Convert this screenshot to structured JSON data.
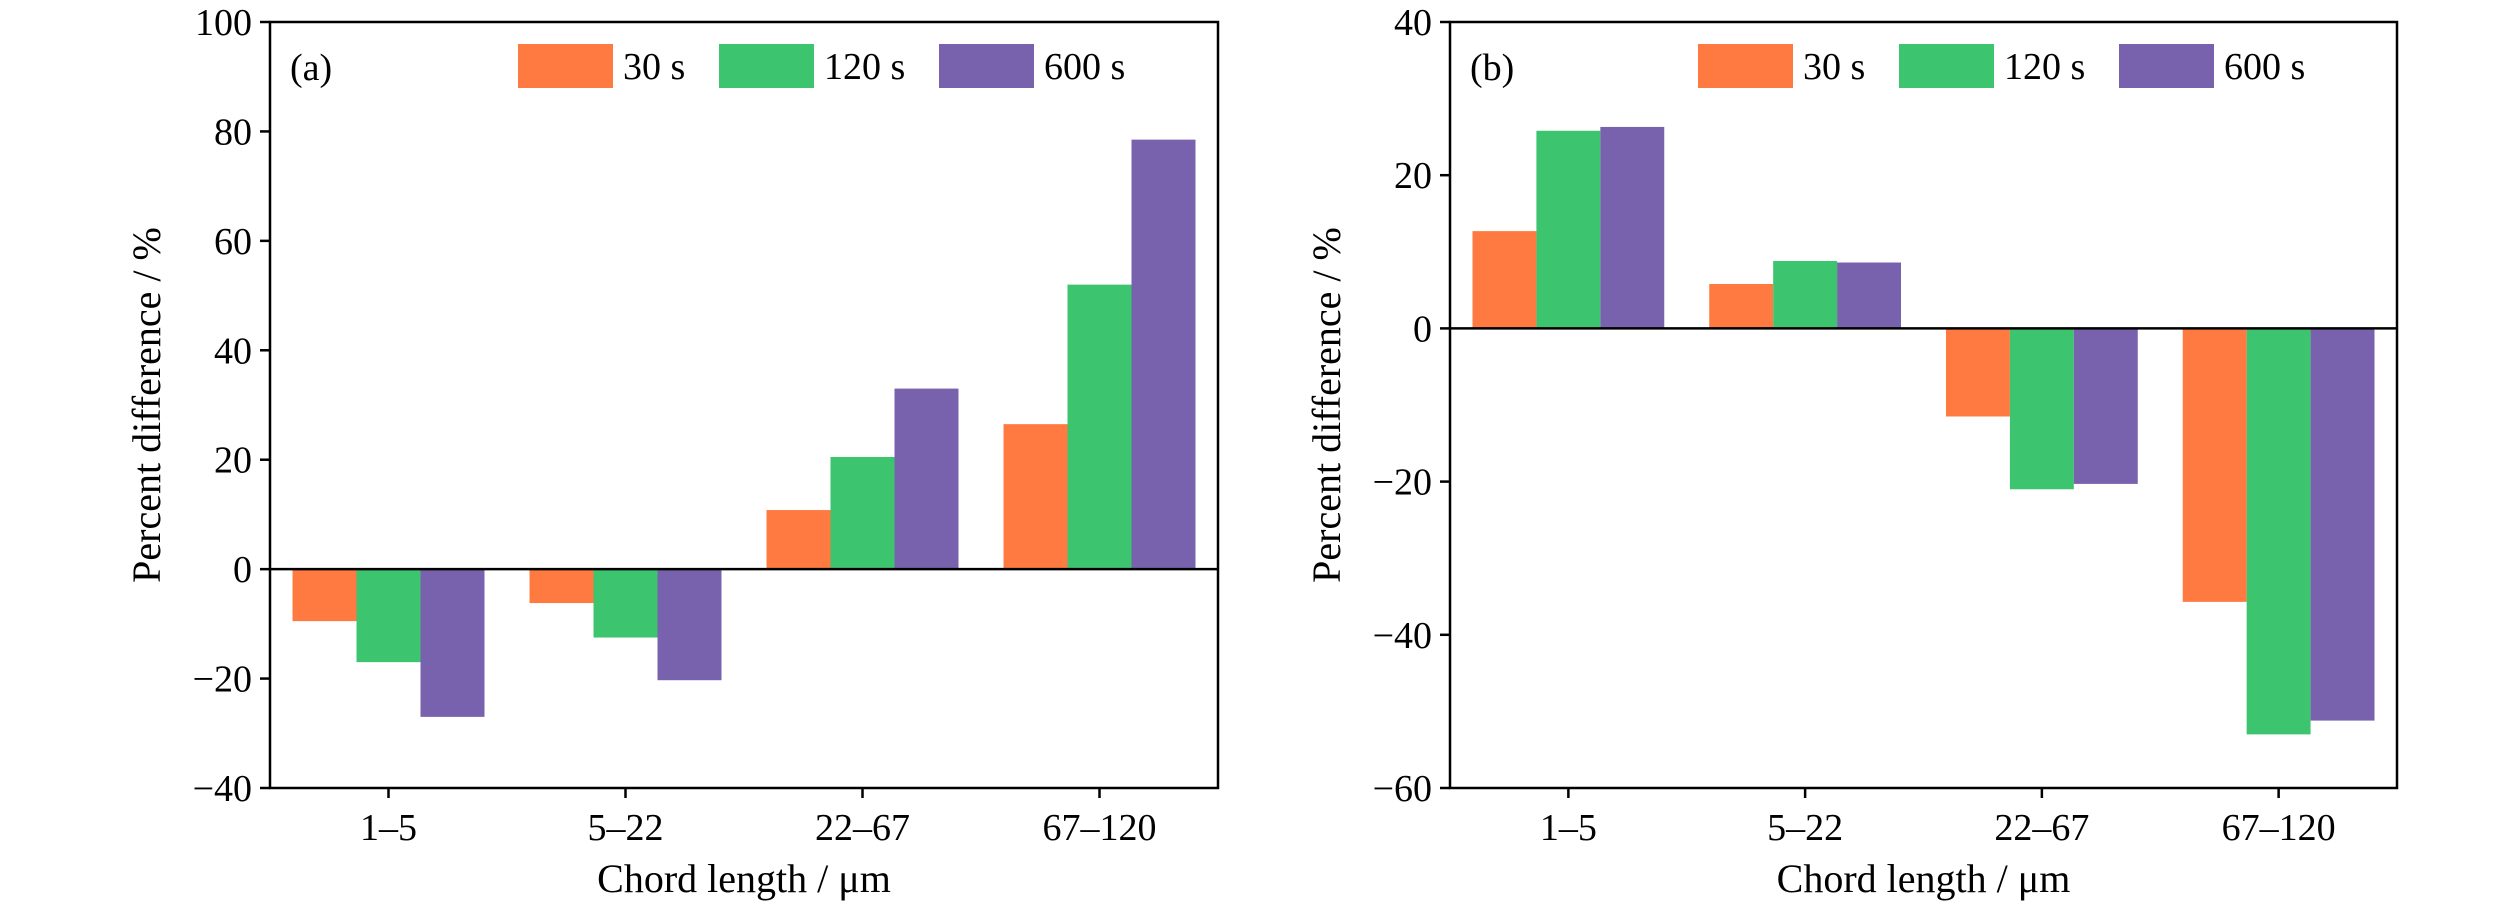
{
  "chart_data": [
    {
      "type": "bar",
      "panel_label": "(a)",
      "categories": [
        "1–5",
        "5–22",
        "22–67",
        "67–120"
      ],
      "series": [
        {
          "name": "30 s",
          "color": "#FF7A40",
          "values": [
            -9.5,
            -6.2,
            10.8,
            26.5
          ]
        },
        {
          "name": "120 s",
          "color": "#3DC46E",
          "values": [
            -17.0,
            -12.5,
            20.5,
            52.0
          ]
        },
        {
          "name": "600 s",
          "color": "#7862AD",
          "values": [
            -27.0,
            -20.3,
            33.0,
            78.5
          ]
        }
      ],
      "xlabel": "Chord length / μm",
      "ylabel": "Percent difference / %",
      "ylim": [
        -40,
        100
      ],
      "yticks": [
        -40,
        -20,
        0,
        20,
        40,
        60,
        80,
        100
      ],
      "ytick_labels": [
        "−40",
        "−20",
        "0",
        "20",
        "40",
        "60",
        "80",
        "100"
      ],
      "legend_position": "top-right",
      "grid": false
    },
    {
      "type": "bar",
      "panel_label": "(b)",
      "categories": [
        "1–5",
        "5–22",
        "22–67",
        "67–120"
      ],
      "series": [
        {
          "name": "30 s",
          "color": "#FF7A40",
          "values": [
            12.7,
            5.8,
            -11.5,
            -35.7
          ]
        },
        {
          "name": "120 s",
          "color": "#3DC46E",
          "values": [
            25.8,
            8.8,
            -21.0,
            -53.0
          ]
        },
        {
          "name": "600 s",
          "color": "#7862AD",
          "values": [
            26.3,
            8.6,
            -20.3,
            -51.2
          ]
        }
      ],
      "xlabel": "Chord length / μm",
      "ylabel": "Percent difference / %",
      "ylim": [
        -60,
        40
      ],
      "yticks": [
        -60,
        -40,
        -20,
        0,
        20,
        40
      ],
      "ytick_labels": [
        "−60",
        "−40",
        "−20",
        "0",
        "20",
        "40"
      ],
      "legend_position": "top-right",
      "grid": false
    }
  ]
}
